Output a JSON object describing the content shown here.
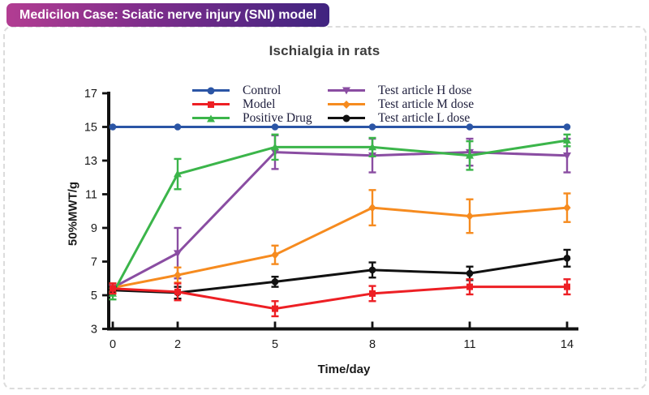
{
  "badge": {
    "label": "Medicilon Case: Sciatic nerve injury (SNI) model"
  },
  "chart_data": {
    "type": "line",
    "title": "Ischialgia in rats",
    "xlabel": "Time/day",
    "ylabel": "50%MWT/g",
    "x": [
      0,
      2,
      5,
      8,
      11,
      14
    ],
    "xticks": [
      0,
      2,
      5,
      8,
      11,
      14
    ],
    "yticks": [
      3,
      5,
      7,
      9,
      11,
      13,
      15,
      17
    ],
    "xlim": [
      0,
      14
    ],
    "ylim": [
      3,
      17
    ],
    "grid": false,
    "legend_position": "top-inside-two-columns",
    "axis_color": "#111111",
    "tick_label_color": "#1a1a1a",
    "series": [
      {
        "name": "Control",
        "color": "#2b55a5",
        "marker": "circle",
        "values": [
          15,
          15,
          15,
          15,
          15,
          15
        ],
        "errors": [
          0,
          0,
          0,
          0,
          0,
          0
        ]
      },
      {
        "name": "Model",
        "color": "#ed1f24",
        "marker": "square",
        "values": [
          5.4,
          5.2,
          4.2,
          5.1,
          5.5,
          5.5
        ],
        "errors": [
          0.3,
          0.5,
          0.45,
          0.45,
          0.45,
          0.45
        ]
      },
      {
        "name": "Positive Drug",
        "color": "#3bb54a",
        "marker": "triangle-up",
        "values": [
          5.1,
          12.2,
          13.8,
          13.8,
          13.3,
          14.2
        ],
        "errors": [
          0.35,
          0.9,
          0.75,
          0.55,
          0.85,
          0.35
        ]
      },
      {
        "name": "Test article H dose",
        "color": "#8a4da2",
        "marker": "triangle-down",
        "values": [
          5.45,
          7.5,
          13.5,
          13.3,
          13.5,
          13.3
        ],
        "errors": [
          0.25,
          1.5,
          1.0,
          1.0,
          0.8,
          1.0
        ]
      },
      {
        "name": "Test article M dose",
        "color": "#f68b1f",
        "marker": "diamond",
        "values": [
          5.45,
          6.2,
          7.4,
          10.2,
          9.7,
          10.2
        ],
        "errors": [
          0.25,
          0.45,
          0.55,
          1.05,
          1.0,
          0.85
        ]
      },
      {
        "name": "Test article L dose",
        "color": "#111111",
        "marker": "circle",
        "values": [
          5.3,
          5.15,
          5.8,
          6.5,
          6.3,
          7.2
        ],
        "errors": [
          0.2,
          0.35,
          0.3,
          0.45,
          0.4,
          0.5
        ]
      }
    ]
  }
}
